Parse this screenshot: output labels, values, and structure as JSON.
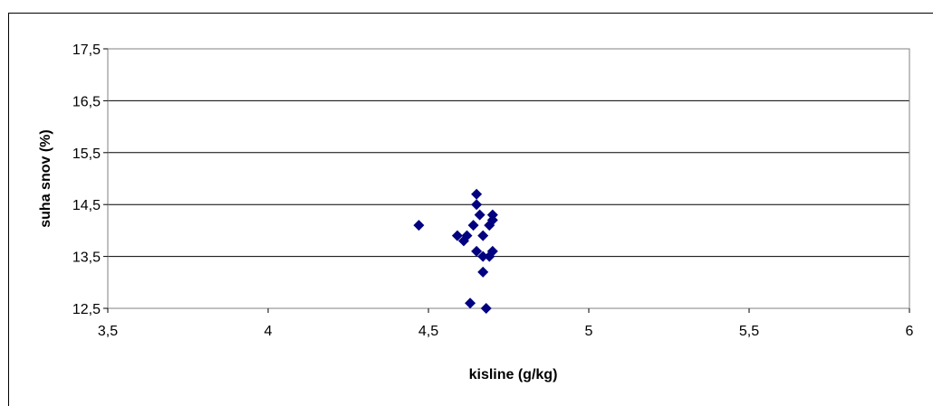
{
  "chart_data": {
    "type": "scatter",
    "title": "",
    "xlabel": "kisline (g/kg)",
    "ylabel": "suha snov (%)",
    "xlim": [
      3.5,
      6
    ],
    "ylim": [
      12.5,
      17.5
    ],
    "x_ticks": [
      "3,5",
      "4",
      "4,5",
      "5",
      "5,5",
      "6"
    ],
    "y_ticks": [
      "12,5",
      "13,5",
      "14,5",
      "15,5",
      "16,5",
      "17,5"
    ],
    "grid": "horizontal",
    "legend": "none",
    "colors": {
      "marker": "#000080",
      "gridline": "#000000",
      "plot_border": "#808080"
    },
    "series": [
      {
        "marker": "diamond",
        "points": [
          {
            "x": 4.47,
            "y": 14.1
          },
          {
            "x": 4.59,
            "y": 13.9
          },
          {
            "x": 4.61,
            "y": 13.8
          },
          {
            "x": 4.62,
            "y": 13.9
          },
          {
            "x": 4.63,
            "y": 12.6
          },
          {
            "x": 4.64,
            "y": 14.1
          },
          {
            "x": 4.65,
            "y": 14.7
          },
          {
            "x": 4.65,
            "y": 14.5
          },
          {
            "x": 4.65,
            "y": 13.6
          },
          {
            "x": 4.66,
            "y": 14.3
          },
          {
            "x": 4.67,
            "y": 13.9
          },
          {
            "x": 4.67,
            "y": 13.5
          },
          {
            "x": 4.67,
            "y": 13.2
          },
          {
            "x": 4.68,
            "y": 12.5
          },
          {
            "x": 4.69,
            "y": 14.1
          },
          {
            "x": 4.69,
            "y": 13.5
          },
          {
            "x": 4.7,
            "y": 14.3
          },
          {
            "x": 4.7,
            "y": 14.2
          },
          {
            "x": 4.7,
            "y": 13.6
          }
        ]
      }
    ]
  }
}
